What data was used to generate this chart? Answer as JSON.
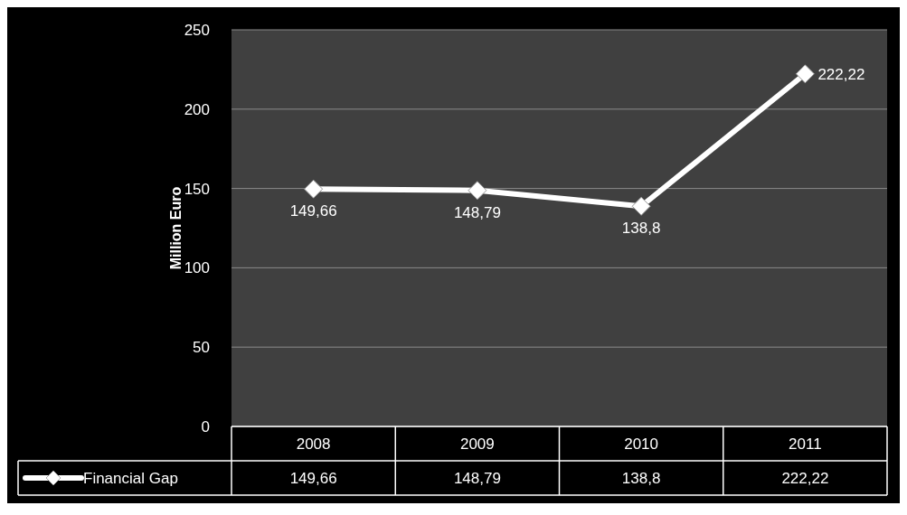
{
  "chart_data": {
    "type": "line",
    "ylabel": "Million Euro",
    "categories": [
      "2008",
      "2009",
      "2010",
      "2011"
    ],
    "series": [
      {
        "name": "Financial Gap",
        "color": "#ffffff",
        "values": [
          149.66,
          148.79,
          138.8,
          222.22
        ],
        "value_labels": [
          "149,66",
          "148,79",
          "138,8",
          "222,22"
        ]
      }
    ],
    "ylim": [
      0,
      250
    ],
    "yticks": [
      0,
      50,
      100,
      150,
      200,
      250
    ],
    "grid": "y",
    "marker": "diamond",
    "legend": "bottom"
  }
}
